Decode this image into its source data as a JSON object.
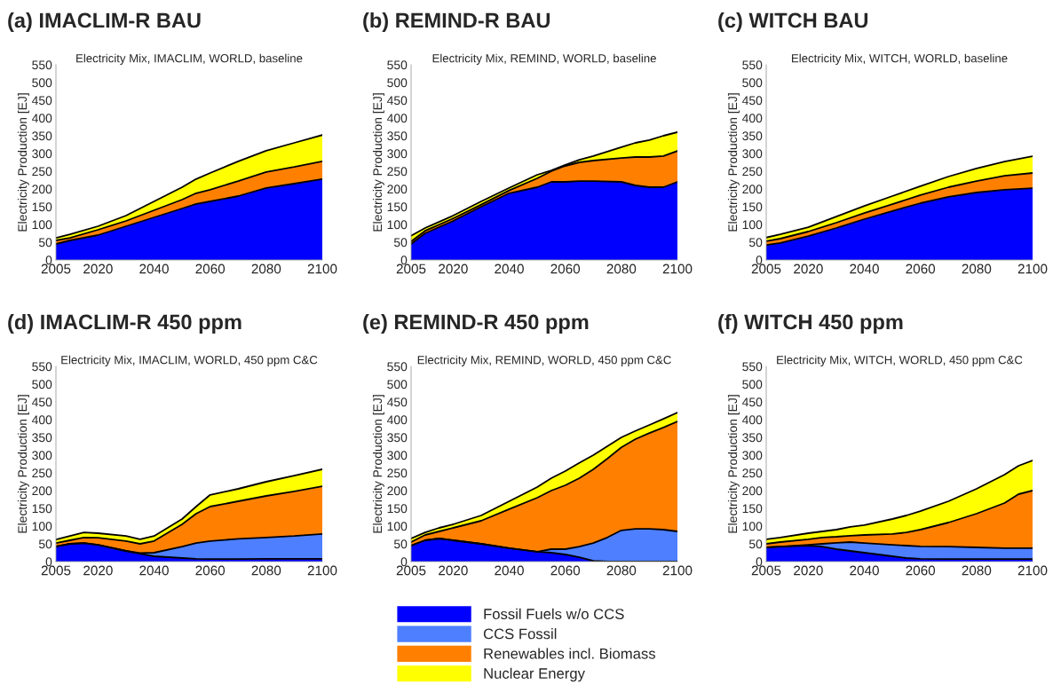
{
  "chart_data": [
    {
      "type": "area",
      "stacked": true,
      "title": "(a) IMACLIM-R BAU",
      "subtitle": "Electricity Mix, IMACLIM, WORLD, baseline",
      "ylabel": "Electricity Production [EJ]",
      "legend": "bottom",
      "grid": false,
      "x": [
        2005,
        2010,
        2020,
        2030,
        2040,
        2050,
        2055,
        2060,
        2070,
        2080,
        2090,
        2100
      ],
      "xlim": [
        2005,
        2100
      ],
      "xticks": [
        2005,
        2020,
        2040,
        2060,
        2080,
        2100
      ],
      "ylim": [
        0,
        550
      ],
      "yticks": [
        0,
        50,
        100,
        150,
        200,
        250,
        300,
        350,
        400,
        450,
        500,
        550
      ],
      "series": [
        {
          "name": "Fossil Fuels w/o CCS",
          "color": "#0000ff",
          "values": [
            45,
            55,
            70,
            95,
            120,
            145,
            158,
            165,
            180,
            203,
            215,
            228
          ]
        },
        {
          "name": "Renewables incl. Biomass",
          "color": "#ff8000",
          "values": [
            10,
            7,
            15,
            15,
            20,
            25,
            30,
            33,
            42,
            45,
            47,
            50
          ]
        },
        {
          "name": "Nuclear Energy",
          "color": "#ffff00",
          "values": [
            7,
            10,
            10,
            15,
            25,
            35,
            40,
            47,
            56,
            60,
            68,
            74
          ]
        }
      ]
    },
    {
      "type": "area",
      "stacked": true,
      "title": "(b) REMIND-R BAU",
      "subtitle": "Electricity Mix, REMIND, WORLD, baseline",
      "ylabel": "Electricity Production [EJ]",
      "legend": "bottom",
      "grid": false,
      "x": [
        2005,
        2010,
        2020,
        2030,
        2040,
        2050,
        2055,
        2060,
        2065,
        2070,
        2080,
        2085,
        2090,
        2095,
        2100
      ],
      "xlim": [
        2005,
        2100
      ],
      "xticks": [
        2005,
        2020,
        2040,
        2060,
        2080,
        2100
      ],
      "ylim": [
        0,
        550
      ],
      "yticks": [
        0,
        50,
        100,
        150,
        200,
        250,
        300,
        350,
        400,
        450,
        500,
        550
      ],
      "series": [
        {
          "name": "Fossil Fuels w/o CCS",
          "color": "#0000ff",
          "values": [
            45,
            75,
            110,
            150,
            188,
            205,
            220,
            220,
            222,
            222,
            220,
            210,
            205,
            205,
            220
          ]
        },
        {
          "name": "Renewables incl. Biomass",
          "color": "#ff8000",
          "values": [
            7,
            7,
            7,
            6,
            8,
            25,
            30,
            45,
            53,
            58,
            67,
            80,
            85,
            88,
            87
          ]
        },
        {
          "name": "Nuclear Energy",
          "color": "#ffff00",
          "values": [
            16,
            8,
            8,
            9,
            7,
            10,
            2,
            3,
            7,
            13,
            31,
            40,
            48,
            57,
            53
          ]
        }
      ]
    },
    {
      "type": "area",
      "stacked": true,
      "title": "(c) WITCH BAU",
      "subtitle": "Electricity Mix, WITCH, WORLD, baseline",
      "ylabel": "Electricity Production [EJ]",
      "legend": "bottom",
      "grid": false,
      "x": [
        2005,
        2010,
        2020,
        2030,
        2040,
        2050,
        2060,
        2070,
        2080,
        2090,
        2100
      ],
      "xlim": [
        2005,
        2100
      ],
      "xticks": [
        2005,
        2020,
        2040,
        2060,
        2080,
        2100
      ],
      "ylim": [
        0,
        550
      ],
      "yticks": [
        0,
        50,
        100,
        150,
        200,
        250,
        300,
        350,
        400,
        450,
        500,
        550
      ],
      "series": [
        {
          "name": "Fossil Fuels w/o CCS",
          "color": "#0000ff",
          "values": [
            42,
            48,
            67,
            90,
            115,
            138,
            160,
            178,
            190,
            198,
            202
          ]
        },
        {
          "name": "Renewables incl. Biomass",
          "color": "#ff8000",
          "values": [
            11,
            12,
            13,
            15,
            17,
            19,
            23,
            27,
            32,
            39,
            43
          ]
        },
        {
          "name": "Nuclear Energy",
          "color": "#ffff00",
          "values": [
            10,
            12,
            12,
            17,
            20,
            23,
            25,
            30,
            36,
            40,
            47
          ]
        }
      ]
    },
    {
      "type": "area",
      "stacked": true,
      "title": "(d) IMACLIM-R 450 ppm",
      "subtitle": "Electricity Mix, IMACLIM, WORLD, 450 ppm C&C",
      "ylabel": "Electricity Production [EJ]",
      "legend": "bottom",
      "grid": false,
      "x": [
        2005,
        2010,
        2015,
        2020,
        2030,
        2035,
        2040,
        2050,
        2055,
        2060,
        2070,
        2080,
        2090,
        2100
      ],
      "xlim": [
        2005,
        2100
      ],
      "xticks": [
        2005,
        2020,
        2040,
        2060,
        2080,
        2100
      ],
      "ylim": [
        0,
        550
      ],
      "yticks": [
        0,
        50,
        100,
        150,
        200,
        250,
        300,
        350,
        400,
        450,
        500,
        550
      ],
      "series": [
        {
          "name": "Fossil Fuels w/o CCS",
          "color": "#0000ff",
          "values": [
            43,
            50,
            52,
            47,
            30,
            22,
            15,
            10,
            8,
            7,
            7,
            8,
            8,
            8
          ]
        },
        {
          "name": "CCS Fossil",
          "color": "#4d7fff",
          "values": [
            0,
            0,
            0,
            0,
            0,
            2,
            10,
            32,
            44,
            51,
            57,
            60,
            64,
            70
          ]
        },
        {
          "name": "Renewables incl. Biomass",
          "color": "#ff8000",
          "values": [
            9,
            10,
            16,
            20,
            28,
            26,
            33,
            63,
            83,
            97,
            106,
            117,
            126,
            134
          ]
        },
        {
          "name": "Nuclear Energy",
          "color": "#ffff00",
          "values": [
            10,
            12,
            14,
            13,
            14,
            13,
            14,
            15,
            20,
            33,
            35,
            40,
            44,
            48
          ]
        }
      ]
    },
    {
      "type": "area",
      "stacked": true,
      "title": "(e) REMIND-R 450 ppm",
      "subtitle": "Electricity Mix, REMIND, WORLD, 450 ppm C&C",
      "ylabel": "Electricity Production [EJ]",
      "legend": "bottom",
      "grid": false,
      "x": [
        2005,
        2010,
        2015,
        2020,
        2030,
        2040,
        2050,
        2055,
        2060,
        2065,
        2070,
        2075,
        2080,
        2085,
        2090,
        2095,
        2100
      ],
      "xlim": [
        2005,
        2100
      ],
      "xticks": [
        2005,
        2020,
        2040,
        2060,
        2080,
        2100
      ],
      "ylim": [
        0,
        550
      ],
      "yticks": [
        0,
        50,
        100,
        150,
        200,
        250,
        300,
        350,
        400,
        450,
        500,
        550
      ],
      "series": [
        {
          "name": "Fossil Fuels w/o CCS",
          "color": "#0000ff",
          "values": [
            45,
            60,
            65,
            60,
            50,
            38,
            28,
            25,
            20,
            12,
            2,
            0,
            0,
            0,
            0,
            0,
            0
          ]
        },
        {
          "name": "CCS Fossil",
          "color": "#4d7fff",
          "values": [
            0,
            0,
            0,
            0,
            0,
            0,
            0,
            10,
            15,
            30,
            50,
            68,
            88,
            92,
            92,
            90,
            85
          ]
        },
        {
          "name": "Renewables incl. Biomass",
          "color": "#ff8000",
          "values": [
            10,
            15,
            20,
            35,
            65,
            110,
            152,
            165,
            180,
            193,
            208,
            222,
            234,
            253,
            270,
            288,
            310
          ]
        },
        {
          "name": "Nuclear Energy",
          "color": "#ffff00",
          "values": [
            10,
            7,
            10,
            10,
            15,
            22,
            30,
            35,
            40,
            43,
            40,
            35,
            28,
            23,
            23,
            24,
            25
          ]
        }
      ]
    },
    {
      "type": "area",
      "stacked": true,
      "title": "(f) WITCH 450 ppm",
      "subtitle": "Electricity Mix, WITCH, WORLD, 450 ppm C&C",
      "ylabel": "Electricity Production [EJ]",
      "legend": "bottom",
      "grid": false,
      "x": [
        2005,
        2010,
        2020,
        2025,
        2030,
        2035,
        2040,
        2050,
        2055,
        2060,
        2070,
        2080,
        2090,
        2095,
        2100
      ],
      "xlim": [
        2005,
        2100
      ],
      "xticks": [
        2005,
        2020,
        2040,
        2060,
        2080,
        2100
      ],
      "ylim": [
        0,
        550
      ],
      "yticks": [
        0,
        50,
        100,
        150,
        200,
        250,
        300,
        350,
        400,
        450,
        500,
        550
      ],
      "series": [
        {
          "name": "Fossil Fuels w/o CCS",
          "color": "#0000ff",
          "values": [
            40,
            42,
            45,
            42,
            35,
            30,
            25,
            15,
            10,
            8,
            7,
            7,
            7,
            7,
            7
          ]
        },
        {
          "name": "CCS Fossil",
          "color": "#4d7fff",
          "values": [
            0,
            0,
            2,
            8,
            18,
            25,
            27,
            32,
            35,
            35,
            35,
            33,
            31,
            31,
            31
          ]
        },
        {
          "name": "Renewables incl. Biomass",
          "color": "#ff8000",
          "values": [
            10,
            13,
            16,
            18,
            17,
            18,
            23,
            31,
            37,
            47,
            68,
            95,
            127,
            152,
            162
          ]
        },
        {
          "name": "Nuclear Energy",
          "color": "#ffff00",
          "values": [
            13,
            13,
            17,
            17,
            20,
            25,
            28,
            42,
            48,
            52,
            60,
            70,
            80,
            80,
            85
          ]
        }
      ]
    }
  ]
}
